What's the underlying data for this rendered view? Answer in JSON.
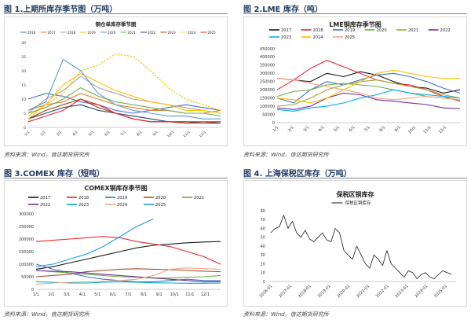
{
  "source_text": "资料来源：Wind，信达期货研究所",
  "panels": [
    {
      "caption": "图 1.上期所库存季节图（万吨）",
      "chart_data": {
        "type": "line",
        "title": "铜仓单库存季节图",
        "xlabel": "",
        "ylabel": "",
        "x_ticks": [
          "1/1",
          "2/1",
          "3/1",
          "4/1",
          "5/1",
          "6/1",
          "7/1",
          "8/1",
          "9/1",
          "10/1",
          "11/1",
          "12/1"
        ],
        "ylim": [
          0,
          30
        ],
        "y_ticks": [
          0,
          5,
          10,
          15,
          20,
          25,
          30
        ],
        "grid": false,
        "legend_position": "top",
        "series": [
          {
            "name": "2016",
            "color": "#4472c4",
            "values": [
              10,
              12,
              11,
              9,
              8,
              6,
              5,
              6,
              7,
              8,
              7,
              6
            ]
          },
          {
            "name": "2017",
            "color": "#ed7d31",
            "values": [
              6,
              8,
              9,
              12,
              10,
              8,
              7,
              6,
              6,
              5,
              5,
              6
            ]
          },
          {
            "name": "2018",
            "color": "#a5a5a5",
            "values": [
              5,
              10,
              13,
              18,
              14,
              12,
              10,
              9,
              8,
              7,
              6,
              5
            ]
          },
          {
            "name": "2019",
            "color": "#ffc000",
            "values": [
              4,
              8,
              15,
              19,
              16,
              13,
              11,
              9,
              8,
              6,
              6,
              5
            ]
          },
          {
            "name": "2020",
            "color": "#5b9bd5",
            "values": [
              6,
              9,
              24,
              20,
              12,
              8,
              6,
              5,
              4,
              4,
              3,
              3
            ]
          },
          {
            "name": "2021",
            "color": "#70ad47",
            "values": [
              5,
              7,
              10,
              14,
              11,
              9,
              8,
              7,
              6,
              5,
              5,
              4
            ]
          },
          {
            "name": "2022",
            "color": "#264478",
            "values": [
              3,
              5,
              7,
              8,
              6,
              5,
              4,
              3,
              2,
              2,
              1.5,
              1.5
            ]
          },
          {
            "name": "2023",
            "color": "#9e480e",
            "values": [
              3,
              6,
              8,
              10,
              7,
              5,
              3,
              2,
              2,
              1.5,
              1.5,
              2
            ]
          },
          {
            "name": "2024",
            "color": "#ffc000",
            "dashed": true,
            "values": [
              3,
              8,
              12,
              20,
              22,
              26,
              25,
              20,
              14,
              10,
              8,
              6
            ]
          },
          {
            "name": "2025",
            "color": "#e8262f",
            "values": [
              2,
              4,
              6,
              10,
              8,
              5,
              3,
              2,
              2,
              2,
              2,
              2
            ]
          }
        ]
      }
    },
    {
      "caption": "图 2.LME 库存（吨）",
      "chart_data": {
        "type": "line",
        "title": "LME铜库存季节图",
        "xlabel": "",
        "ylabel": "",
        "x_ticks": [
          "1/1",
          "2/1",
          "3/1",
          "4/1",
          "5/1",
          "6/1",
          "7/1",
          "8/1",
          "9/1",
          "10/1",
          "11/1",
          "12/1"
        ],
        "ylim": [
          0,
          450000
        ],
        "y_ticks": [
          0,
          50000,
          100000,
          150000,
          200000,
          250000,
          300000,
          350000,
          400000,
          450000
        ],
        "grid": false,
        "legend_position": "top",
        "series": [
          {
            "name": "2017",
            "color": "#1a1a1a",
            "values": [
              270000,
              260000,
              250000,
              300000,
              280000,
              310000,
              290000,
              250000,
              220000,
              210000,
              180000,
              200000
            ]
          },
          {
            "name": "2018",
            "color": "#e8262f",
            "values": [
              200000,
              260000,
              330000,
              380000,
              340000,
              300000,
              260000,
              240000,
              230000,
              200000,
              160000,
              130000
            ]
          },
          {
            "name": "2019",
            "color": "#4472c4",
            "values": [
              150000,
              120000,
              200000,
              250000,
              230000,
              260000,
              290000,
              300000,
              280000,
              250000,
              210000,
              180000
            ]
          },
          {
            "name": "2020",
            "color": "#70ad47",
            "values": [
              160000,
              190000,
              200000,
              230000,
              240000,
              230000,
              220000,
              200000,
              180000,
              160000,
              150000,
              140000
            ]
          },
          {
            "name": "2021",
            "color": "#a5a536",
            "values": [
              100000,
              110000,
              150000,
              200000,
              230000,
              250000,
              260000,
              240000,
              220000,
              200000,
              170000,
              150000
            ]
          },
          {
            "name": "2022",
            "color": "#7030a0",
            "values": [
              90000,
              80000,
              100000,
              150000,
              180000,
              170000,
              140000,
              130000,
              120000,
              110000,
              90000,
              85000
            ]
          },
          {
            "name": "2023",
            "color": "#00b0f0",
            "values": [
              80000,
              70000,
              90000,
              100000,
              120000,
              150000,
              170000,
              200000,
              180000,
              170000,
              160000,
              150000
            ]
          },
          {
            "name": "2024",
            "color": "#ffc000",
            "values": [
              150000,
              140000,
              120000,
              150000,
              200000,
              250000,
              300000,
              320000,
              300000,
              280000,
              270000,
              270000
            ]
          },
          {
            "name": "2025",
            "color": "#f4a582",
            "values": [
              270000,
              260000,
              240000,
              220000,
              200000,
              180000,
              150000,
              140000,
              150000,
              160000,
              150000,
              140000
            ]
          }
        ]
      }
    },
    {
      "caption": "图 3.COMEX 库存（短吨）",
      "chart_data": {
        "type": "line",
        "title": "COMEX铜库存季节图",
        "xlabel": "",
        "ylabel": "",
        "x_ticks": [
          "1/1",
          "2/1",
          "3/1",
          "4/1",
          "5/1",
          "6/1",
          "7/1",
          "8/1",
          "9/1",
          "10/1",
          "11/1",
          "12/1"
        ],
        "ylim": [
          0,
          300000
        ],
        "y_ticks": [
          0,
          50000,
          100000,
          150000,
          200000,
          250000,
          300000
        ],
        "grid": false,
        "legend_position": "top",
        "series": [
          {
            "name": "2017",
            "color": "#1a1a1a",
            "values": [
              80000,
              90000,
              105000,
              120000,
              135000,
              150000,
              165000,
              175000,
              180000,
              185000,
              188000,
              190000
            ]
          },
          {
            "name": "2018",
            "color": "#e8262f",
            "values": [
              190000,
              195000,
              200000,
              205000,
              210000,
              205000,
              190000,
              180000,
              170000,
              150000,
              130000,
              100000
            ]
          },
          {
            "name": "2019",
            "color": "#4472c4",
            "values": [
              100000,
              80000,
              65000,
              50000,
              40000,
              35000,
              30000,
              30000,
              35000,
              40000,
              35000,
              35000
            ]
          },
          {
            "name": "2020",
            "color": "#a0522d",
            "values": [
              50000,
              55000,
              60000,
              70000,
              75000,
              80000,
              82000,
              80000,
              78000,
              75000,
              72000,
              70000
            ]
          },
          {
            "name": "2021",
            "color": "#70ad47",
            "values": [
              75000,
              70000,
              65000,
              60000,
              55000,
              50000,
              48000,
              45000,
              45000,
              48000,
              50000,
              55000
            ]
          },
          {
            "name": "2022",
            "color": "#7030a0",
            "values": [
              75000,
              72000,
              70000,
              65000,
              60000,
              55000,
              50000,
              45000,
              40000,
              35000,
              30000,
              30000
            ]
          },
          {
            "name": "2023",
            "color": "#00b0c8",
            "values": [
              30000,
              28000,
              25000,
              25000,
              28000,
              30000,
              28000,
              26000,
              25000,
              24000,
              24000,
              25000
            ]
          },
          {
            "name": "2024",
            "color": "#f4a582",
            "values": [
              20000,
              25000,
              28000,
              30000,
              32000,
              35000,
              40000,
              55000,
              80000,
              85000,
              82000,
              80000
            ]
          },
          {
            "name": "2025",
            "color": "#1f9bde",
            "values": [
              90000,
              100000,
              120000,
              140000,
              170000,
              210000,
              250000,
              280000
            ]
          }
        ]
      }
    },
    {
      "caption": "图 4. 上海保税区库存（万吨）",
      "chart_data": {
        "type": "line",
        "title": "保税区铜库存",
        "xlabel": "",
        "ylabel": "",
        "x_ticks": [
          "2016-01",
          "2017-01",
          "2018-01",
          "2019-01",
          "2020-01",
          "2021-01",
          "2022-01",
          "2023-01",
          "2024-01",
          "2025-01"
        ],
        "ylim": [
          0,
          80
        ],
        "y_ticks": [
          0,
          10,
          20,
          30,
          40,
          50,
          60,
          70,
          80
        ],
        "grid": false,
        "legend_position": "top",
        "series": [
          {
            "name": "保税区铜库存",
            "color": "#1a1a1a",
            "values": [
              55,
              60,
              62,
              75,
              60,
              68,
              55,
              50,
              58,
              48,
              45,
              50,
              55,
              47,
              45,
              60,
              55,
              35,
              30,
              25,
              40,
              30,
              20,
              15,
              30,
              25,
              18,
              35,
              20,
              15,
              10,
              5,
              12,
              10,
              3,
              8,
              10,
              5,
              3,
              8,
              12,
              10,
              8
            ]
          }
        ]
      }
    }
  ]
}
